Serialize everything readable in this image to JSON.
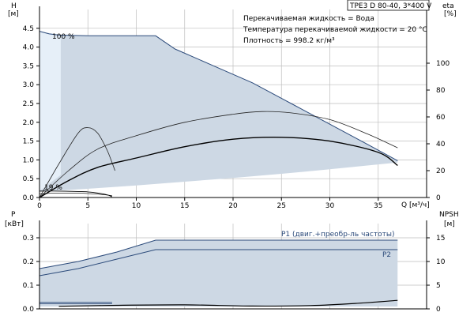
{
  "chart_data": [
    {
      "type": "line",
      "title": "TPE3 D 80-40, 3*400 V",
      "annotations": [
        "Перекачиваемая жидкость = Вода",
        "Температура перекачиваемой жидкости = 20 °C",
        "Плотность = 998.2 кг/м³"
      ],
      "xlabel": "Q [м³/ч]",
      "ylabel_left": [
        "H",
        "[м]"
      ],
      "ylabel_right": [
        "eta",
        "[%]"
      ],
      "xlim": [
        0,
        40
      ],
      "ylim_left": [
        0,
        5
      ],
      "ylim_right": [
        0,
        140
      ],
      "x_ticks": [
        "0",
        "5",
        "10",
        "15",
        "20",
        "25",
        "30",
        "35"
      ],
      "y_ticks_left": [
        "0.0",
        "0.5",
        "1.0",
        "1.5",
        "2.0",
        "2.5",
        "3.0",
        "3.5",
        "4.0",
        "4.5"
      ],
      "y_ticks_right": [
        "0",
        "20",
        "40",
        "60",
        "80",
        "100"
      ],
      "grid": true,
      "speed_labels": [
        "100 %",
        "19 %"
      ],
      "series": [
        {
          "axis": "left",
          "role": "max-speed-boundary",
          "x": [
            0,
            1,
            2,
            5,
            8,
            12,
            14,
            18,
            22,
            26,
            30,
            34,
            37
          ],
          "y": [
            4.42,
            4.35,
            4.32,
            4.3,
            4.3,
            4.3,
            3.95,
            3.5,
            3.05,
            2.5,
            1.95,
            1.4,
            0.98
          ]
        },
        {
          "axis": "left",
          "role": "min-speed-boundary",
          "x": [
            0,
            3,
            6,
            10,
            15,
            20,
            25,
            30,
            35,
            37
          ],
          "y": [
            0.17,
            0.2,
            0.25,
            0.32,
            0.42,
            0.52,
            0.63,
            0.75,
            0.88,
            0.93
          ]
        },
        {
          "axis": "left",
          "role": "min-speed-curve",
          "x": [
            0,
            2,
            4,
            5,
            6,
            7,
            7.5
          ],
          "y": [
            0.17,
            0.17,
            0.16,
            0.15,
            0.12,
            0.07,
            0.02
          ]
        },
        {
          "axis": "left",
          "role": "system-curve",
          "x": [
            0,
            3,
            6,
            10,
            15,
            20,
            25,
            30,
            35,
            37
          ],
          "y": [
            0.0,
            0.45,
            0.8,
            1.05,
            1.35,
            1.55,
            1.6,
            1.5,
            1.2,
            0.85
          ]
        },
        {
          "axis": "right",
          "name": "eta",
          "x": [
            0,
            3,
            6,
            10,
            15,
            20,
            23,
            26,
            30,
            34,
            37
          ],
          "y": [
            0,
            20,
            36,
            46,
            56,
            62,
            64,
            63,
            58,
            47,
            37
          ]
        },
        {
          "axis": "right",
          "role": "eta-low-speed",
          "x": [
            0,
            2,
            4,
            5,
            6,
            7,
            7.8
          ],
          "y": [
            0,
            25,
            48,
            52,
            48,
            35,
            20
          ]
        }
      ]
    },
    {
      "type": "line",
      "xlim": [
        0,
        40
      ],
      "ylabel_left": [
        "P",
        "[кВт]"
      ],
      "ylabel_right": [
        "NPSH",
        "[м]"
      ],
      "ylim_left": [
        0,
        0.36
      ],
      "ylim_right": [
        0,
        18
      ],
      "y_ticks_left": [
        "0.0",
        "0.1",
        "0.2",
        "0.3"
      ],
      "y_ticks_right": [
        "0",
        "5",
        "10",
        "15"
      ],
      "grid": true,
      "series": [
        {
          "name": "P1 (двиг.+преобр-ль частоты)",
          "axis": "left",
          "x": [
            0,
            4,
            8,
            12,
            20,
            30,
            37
          ],
          "y": [
            0.17,
            0.2,
            0.24,
            0.29,
            0.29,
            0.29,
            0.29
          ]
        },
        {
          "name": "P2",
          "axis": "left",
          "x": [
            0,
            4,
            8,
            12,
            20,
            30,
            37
          ],
          "y": [
            0.14,
            0.17,
            0.21,
            0.25,
            0.25,
            0.25,
            0.25
          ]
        },
        {
          "axis": "right",
          "role": "NPSH",
          "x": [
            2,
            8,
            15,
            22,
            28,
            33,
            37
          ],
          "y": [
            0.55,
            0.75,
            0.85,
            0.6,
            0.7,
            1.2,
            1.8
          ]
        },
        {
          "axis": "left",
          "role": "min-speed-P",
          "x": [
            0,
            7.5
          ],
          "y": [
            0.022,
            0.022
          ]
        }
      ]
    }
  ]
}
